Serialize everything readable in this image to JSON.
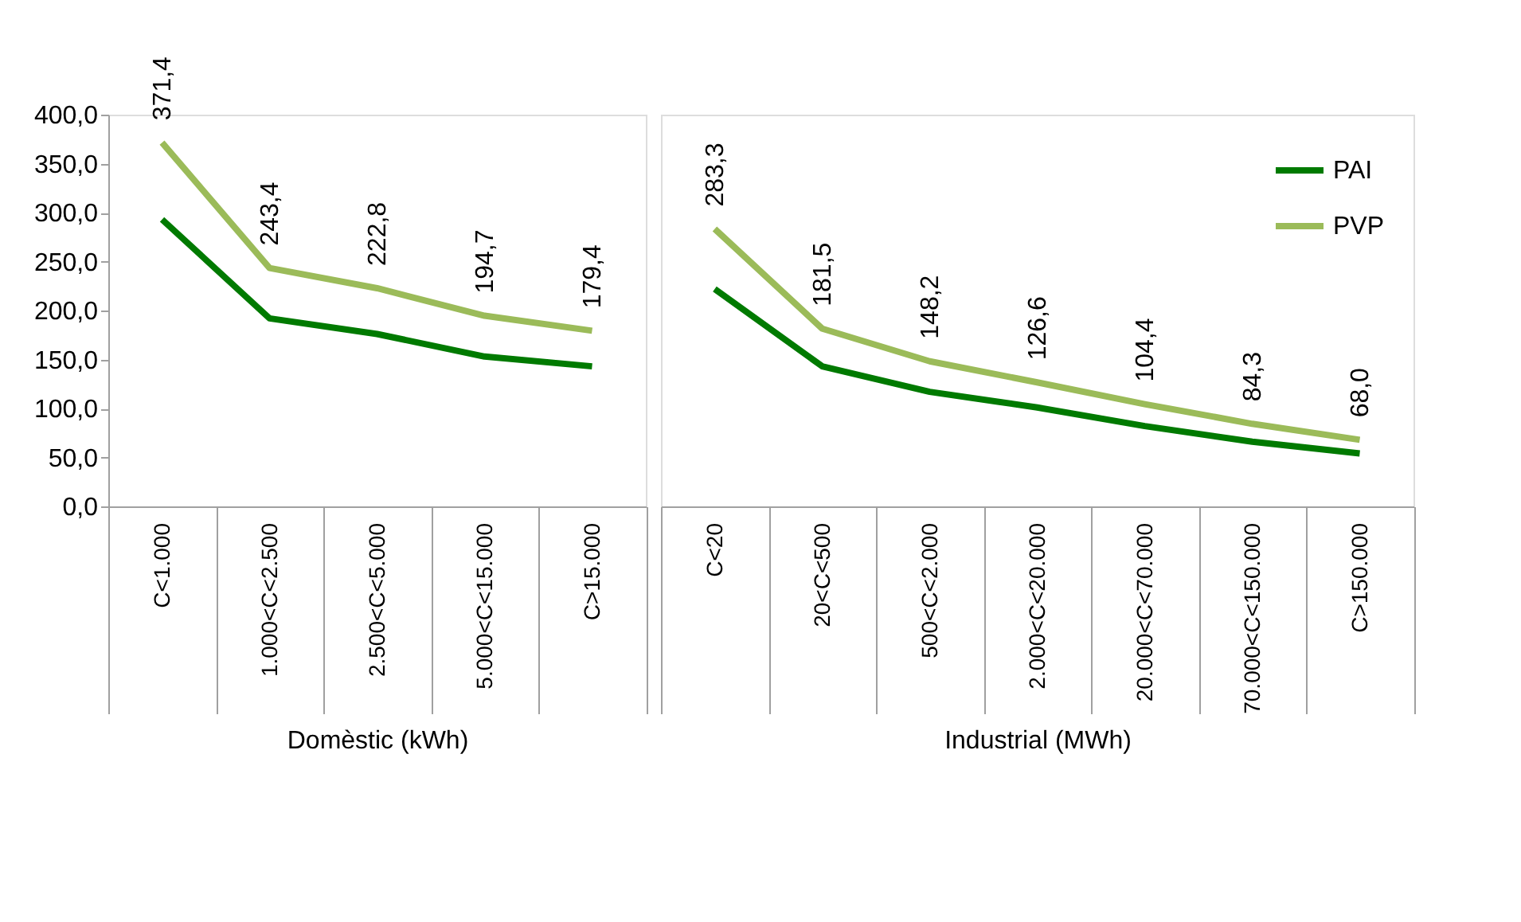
{
  "chart_data": [
    {
      "type": "line",
      "xlabel": "Domèstic (kWh)",
      "categories": [
        "C<1.000",
        "1.000<C<2.500",
        "2.500<C<5.000",
        "5.000<C<15.000",
        "C>15.000"
      ],
      "ylim": [
        0,
        400
      ],
      "yticks": [
        {
          "value": 0,
          "label": "0,0"
        },
        {
          "value": 50,
          "label": "50,0"
        },
        {
          "value": 100,
          "label": "100,0"
        },
        {
          "value": 150,
          "label": "150,0"
        },
        {
          "value": 200,
          "label": "200,0"
        },
        {
          "value": 250,
          "label": "250,0"
        },
        {
          "value": 300,
          "label": "300,0"
        },
        {
          "value": 350,
          "label": "350,0"
        },
        {
          "value": 400,
          "label": "400,0"
        }
      ],
      "grid": false,
      "series": [
        {
          "color": "#007a00",
          "values": [
            293,
            192,
            176,
            153,
            143
          ]
        },
        {
          "color": "#9bbb59",
          "values": [
            371.4,
            243.4,
            222.8,
            194.7,
            179.4
          ],
          "value_labels": [
            "371,4",
            "243,4",
            "222,8",
            "194,7",
            "179,4"
          ]
        }
      ]
    },
    {
      "type": "line",
      "xlabel": "Industrial (MWh)",
      "categories": [
        "C<20",
        "20<C<500",
        "500<C<2.000",
        "2.000<C<20.000",
        "20.000<C<70.000",
        "70.000<C<150.000",
        "C>150.000"
      ],
      "ylim": [
        0,
        400
      ],
      "tick_labels": "x",
      "grid": false,
      "legend": "top right",
      "series": [
        {
          "name": "PAI",
          "color": "#007a00",
          "values": [
            222,
            143,
            117,
            101,
            82,
            66,
            54
          ]
        },
        {
          "name": "PVP",
          "color": "#9bbb59",
          "values": [
            283.3,
            181.5,
            148.2,
            126.6,
            104.4,
            84.3,
            68.0
          ],
          "value_labels": [
            "283,3",
            "181,5",
            "148,2",
            "126,6",
            "104,4",
            "84,3",
            "68,0"
          ]
        }
      ]
    }
  ]
}
